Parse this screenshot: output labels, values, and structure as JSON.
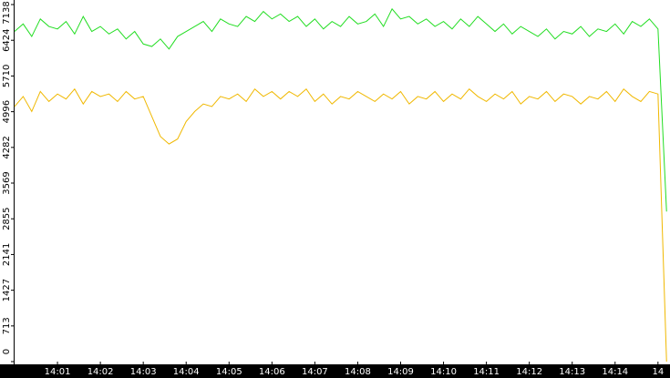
{
  "chart_data": {
    "type": "line",
    "x": [
      0,
      0.2,
      0.4,
      0.6,
      0.8,
      1,
      1.2,
      1.4,
      1.6,
      1.8,
      2,
      2.2,
      2.4,
      2.6,
      2.8,
      3,
      3.2,
      3.4,
      3.6,
      3.8,
      4,
      4.2,
      4.4,
      4.6,
      4.8,
      5,
      5.2,
      5.4,
      5.6,
      5.8,
      6,
      6.2,
      6.4,
      6.6,
      6.8,
      7,
      7.2,
      7.4,
      7.6,
      7.8,
      8,
      8.2,
      8.4,
      8.6,
      8.8,
      9,
      9.2,
      9.4,
      9.6,
      9.8,
      10,
      10.2,
      10.4,
      10.6,
      10.8,
      11,
      11.2,
      11.4,
      11.6,
      11.8,
      12,
      12.2,
      12.4,
      12.6,
      12.8,
      13,
      13.2,
      13.4,
      13.6,
      13.8,
      14,
      14.2,
      14.4,
      14.6,
      14.8,
      15,
      15.2
    ],
    "series": [
      {
        "color": "#22dd22",
        "values": [
          6600,
          6750,
          6500,
          6850,
          6700,
          6650,
          6800,
          6550,
          6900,
          6600,
          6700,
          6550,
          6650,
          6450,
          6600,
          6350,
          6300,
          6450,
          6250,
          6500,
          6600,
          6700,
          6800,
          6600,
          6850,
          6750,
          6700,
          6900,
          6800,
          7000,
          6850,
          6950,
          6800,
          6900,
          6700,
          6850,
          6650,
          6800,
          6700,
          6900,
          6750,
          6800,
          6950,
          6700,
          7050,
          6850,
          6900,
          6750,
          6850,
          6700,
          6800,
          6650,
          6850,
          6700,
          6900,
          6750,
          6600,
          6750,
          6550,
          6700,
          6600,
          6500,
          6650,
          6450,
          6600,
          6550,
          6700,
          6500,
          6650,
          6600,
          6750,
          6550,
          6800,
          6700,
          6850,
          6650,
          3000
        ]
      },
      {
        "color": "#f0b800",
        "values": [
          5100,
          5300,
          5000,
          5400,
          5200,
          5350,
          5250,
          5450,
          5150,
          5400,
          5300,
          5350,
          5200,
          5400,
          5250,
          5300,
          4900,
          4500,
          4350,
          4450,
          4800,
          5000,
          5150,
          5100,
          5300,
          5250,
          5350,
          5200,
          5450,
          5300,
          5400,
          5250,
          5400,
          5300,
          5450,
          5200,
          5350,
          5150,
          5300,
          5250,
          5400,
          5300,
          5200,
          5350,
          5250,
          5400,
          5150,
          5300,
          5250,
          5400,
          5200,
          5350,
          5250,
          5450,
          5300,
          5200,
          5350,
          5250,
          5400,
          5150,
          5300,
          5250,
          5400,
          5200,
          5350,
          5300,
          5150,
          5300,
          5250,
          5400,
          5200,
          5450,
          5300,
          5200,
          5400,
          5350,
          0
        ]
      }
    ],
    "xlim": [
      0,
      15.28
    ],
    "ylim": [
      0,
      7138
    ],
    "xticks": [
      {
        "value": 1,
        "label": "14:01"
      },
      {
        "value": 2,
        "label": "14:02"
      },
      {
        "value": 3,
        "label": "14:03"
      },
      {
        "value": 4,
        "label": "14:04"
      },
      {
        "value": 5,
        "label": "14:05"
      },
      {
        "value": 6,
        "label": "14:06"
      },
      {
        "value": 7,
        "label": "14:07"
      },
      {
        "value": 8,
        "label": "14:08"
      },
      {
        "value": 9,
        "label": "14:09"
      },
      {
        "value": 10,
        "label": "14:10"
      },
      {
        "value": 11,
        "label": "14:11"
      },
      {
        "value": 12,
        "label": "14:12"
      },
      {
        "value": 13,
        "label": "14:13"
      },
      {
        "value": 14,
        "label": "14:14"
      },
      {
        "value": 15,
        "label": "14"
      }
    ],
    "yticks": [
      0,
      713,
      1427,
      2141,
      2855,
      3569,
      4282,
      4996,
      5710,
      6424,
      7138
    ]
  }
}
